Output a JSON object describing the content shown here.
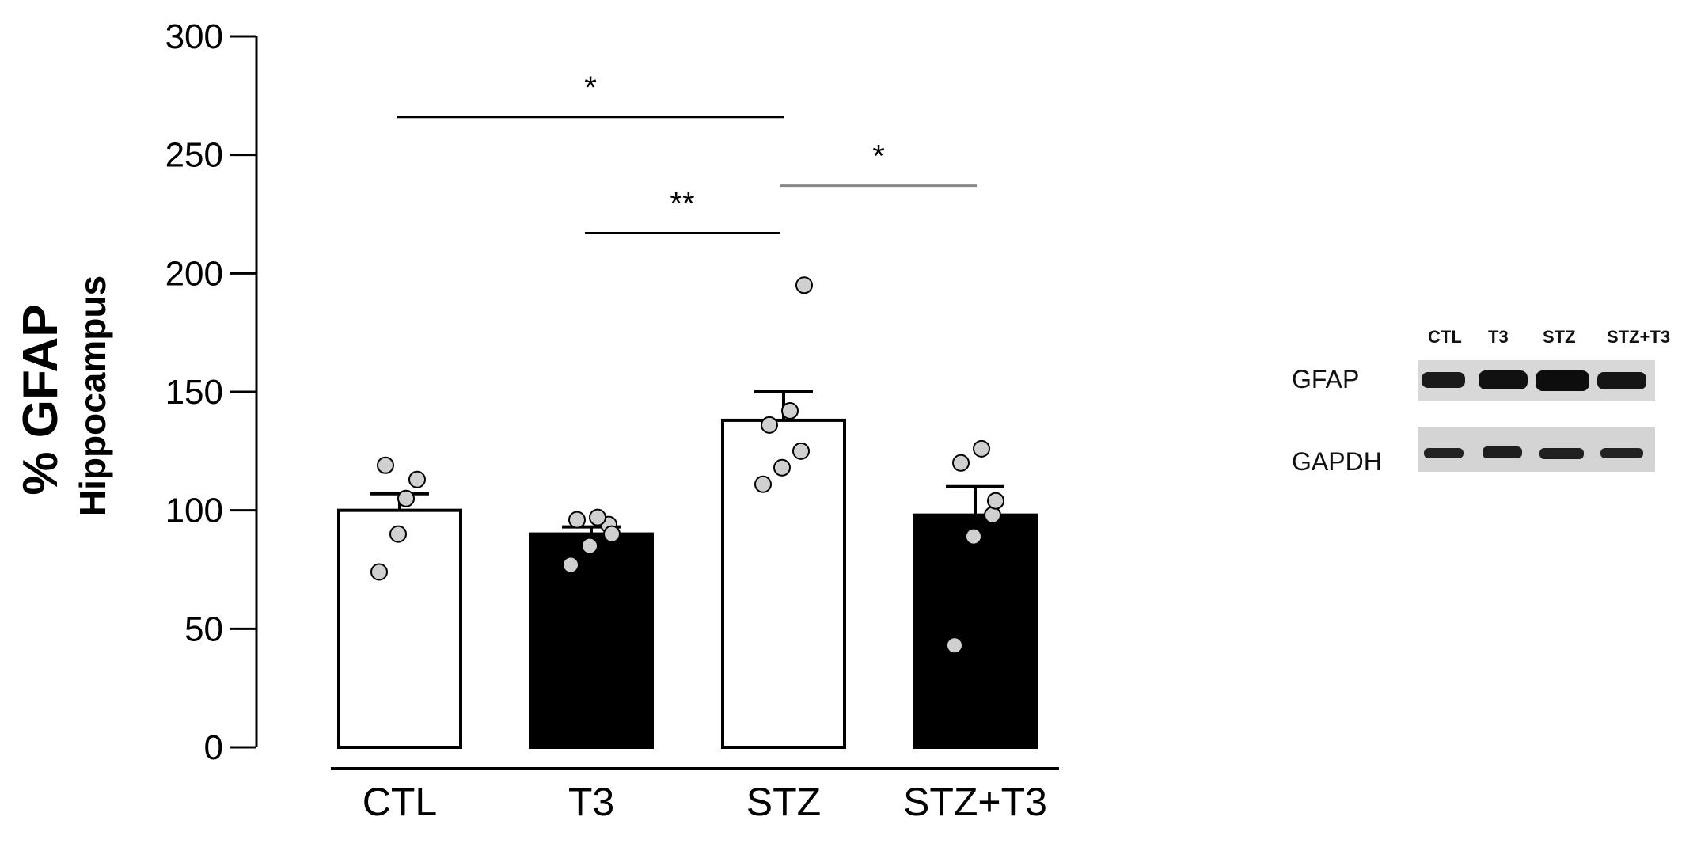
{
  "chart_data": {
    "type": "bar",
    "ylabel": "% GFAP",
    "ylabel_sub": "Hippocampus",
    "ylim": [
      0,
      300
    ],
    "yticks": [
      0,
      50,
      100,
      150,
      200,
      250,
      300
    ],
    "grid": false,
    "categories": [
      "CTL",
      "T3",
      "STZ",
      "STZ+T3"
    ],
    "values": [
      100,
      90,
      138,
      98
    ],
    "errors": [
      7,
      3,
      12,
      12
    ],
    "bar_colors": [
      "#ffffff",
      "#000000",
      "#ffffff",
      "#000000"
    ],
    "points": [
      [
        74,
        90,
        113,
        119,
        105
      ],
      [
        77,
        85,
        94,
        96,
        97,
        90
      ],
      [
        111,
        118,
        125,
        136,
        142,
        195
      ],
      [
        43,
        89,
        98,
        120,
        126,
        104
      ]
    ],
    "significance": [
      {
        "from": "CTL",
        "to": "STZ",
        "label": "*",
        "y": 266,
        "color": "#000000"
      },
      {
        "from": "T3",
        "to": "STZ",
        "label": "**",
        "y": 217,
        "color": "#000000"
      },
      {
        "from": "STZ",
        "to": "STZ+T3",
        "label": "*",
        "y": 237,
        "color": "#888888"
      }
    ]
  },
  "blot": {
    "lanes": [
      "CTL",
      "T3",
      "STZ",
      "STZ+T3"
    ],
    "rows": [
      "GFAP",
      "GAPDH"
    ]
  }
}
